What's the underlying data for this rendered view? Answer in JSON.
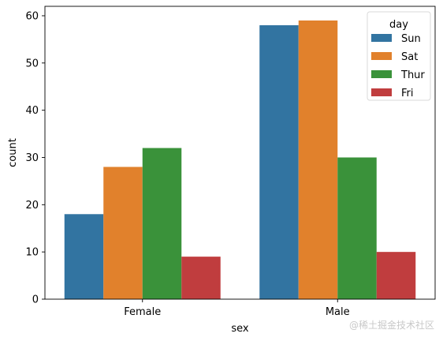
{
  "chart_data": {
    "type": "bar",
    "categories": [
      "Female",
      "Male"
    ],
    "series": [
      {
        "name": "Sun",
        "color": "#3274a1",
        "values": [
          18,
          58
        ]
      },
      {
        "name": "Sat",
        "color": "#e1812c",
        "values": [
          28,
          59
        ]
      },
      {
        "name": "Thur",
        "color": "#3a923a",
        "values": [
          32,
          30
        ]
      },
      {
        "name": "Fri",
        "color": "#c03d3e",
        "values": [
          9,
          10
        ]
      }
    ],
    "xlabel": "sex",
    "ylabel": "count",
    "ylim": [
      0,
      62
    ],
    "yticks": [
      0,
      10,
      20,
      30,
      40,
      50,
      60
    ],
    "legend": {
      "title": "day",
      "position": "top-right"
    },
    "grid": false
  },
  "watermark": "@稀土掘金技术社区"
}
